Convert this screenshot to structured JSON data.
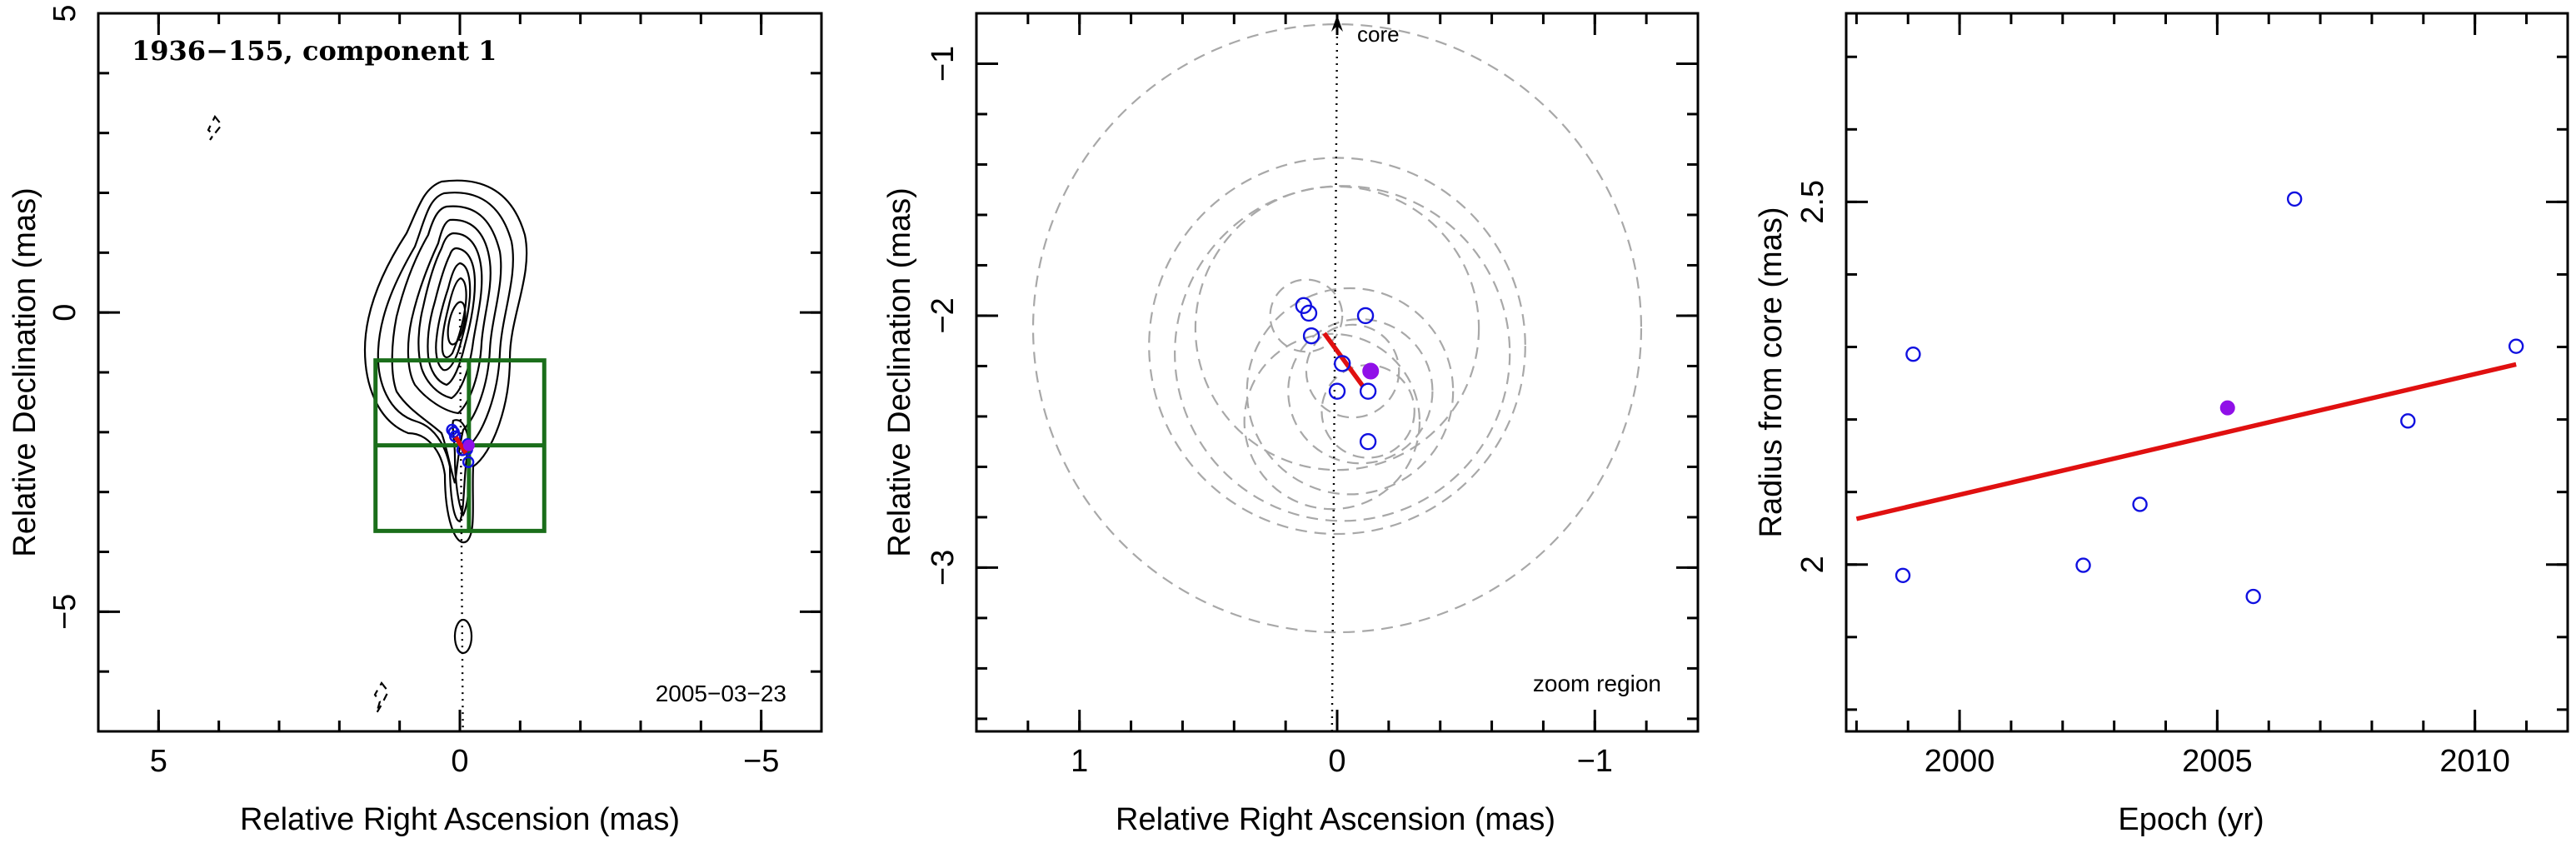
{
  "chart_data": [
    {
      "type": "scatter",
      "panel": "contour-map",
      "title": "1936−155, component 1",
      "annotation": "2005−03−23",
      "xlabel": "Relative Right Ascension (mas)",
      "ylabel": "Relative Declination (mas)",
      "xlim": [
        6,
        -6
      ],
      "ylim": [
        -7,
        5
      ],
      "xticks": [
        5,
        0,
        -5
      ],
      "xtick_labels": [
        "5",
        "0",
        "−5"
      ],
      "yticks": [
        5,
        0,
        -5
      ],
      "ytick_labels": [
        "5",
        "0",
        "−5"
      ],
      "component_positions": [
        {
          "x": 0.13,
          "y": -1.96
        },
        {
          "x": 0.1,
          "y": -2.0
        },
        {
          "x": 0.08,
          "y": -2.07
        },
        {
          "x": -0.04,
          "y": -2.3
        },
        {
          "x": -0.13,
          "y": -2.2
        },
        {
          "x": -0.14,
          "y": -2.5
        },
        {
          "x": -0.12,
          "y": -2.29
        }
      ],
      "current_epoch_position": {
        "x": -0.15,
        "y": -2.22
      },
      "trajectory_fit": {
        "x": [
          0.07,
          -0.1
        ],
        "y": [
          -2.08,
          -2.35
        ]
      },
      "zoom_box": {
        "x": [
          1.4,
          -1.4
        ],
        "y": [
          -0.8,
          -3.65
        ]
      },
      "crosshair": {
        "x": -0.15,
        "y": -2.22
      },
      "grid": false
    },
    {
      "type": "scatter",
      "panel": "zoom",
      "xlabel": "Relative Right Ascension (mas)",
      "ylabel": "Relative Declination (mas)",
      "annotation": "zoom region",
      "core_label": "core",
      "xlim": [
        1.4,
        -1.4
      ],
      "ylim": [
        -3.65,
        -0.8
      ],
      "xticks": [
        1,
        0,
        -1
      ],
      "xtick_labels": [
        "1",
        "0",
        "−1"
      ],
      "yticks": [
        -1,
        -2,
        -3
      ],
      "ytick_labels": [
        "−1",
        "−2",
        "−3"
      ],
      "component_positions": [
        {
          "x": 0.13,
          "y": -1.96
        },
        {
          "x": 0.11,
          "y": -1.99
        },
        {
          "x": 0.1,
          "y": -2.08
        },
        {
          "x": -0.11,
          "y": -2.0
        },
        {
          "x": -0.02,
          "y": -2.19
        },
        {
          "x": 0.0,
          "y": -2.3
        },
        {
          "x": -0.12,
          "y": -2.3
        },
        {
          "x": -0.12,
          "y": -2.5
        }
      ],
      "current_epoch_position": {
        "x": -0.13,
        "y": -2.22
      },
      "trajectory_fit": {
        "x": [
          0.05,
          -0.1
        ],
        "y": [
          -2.07,
          -2.28
        ]
      },
      "error_circles": [
        {
          "x": 0.0,
          "y": -2.05,
          "r": 1.18
        },
        {
          "x": 0.0,
          "y": -2.12,
          "r": 0.73
        },
        {
          "x": 0.0,
          "y": -2.05,
          "r": 0.55
        },
        {
          "x": -0.02,
          "y": -2.15,
          "r": 0.65
        },
        {
          "x": -0.09,
          "y": -2.3,
          "r": 0.28
        },
        {
          "x": -0.12,
          "y": -2.38,
          "r": 0.18
        },
        {
          "x": 0.12,
          "y": -2.0,
          "r": 0.14
        },
        {
          "x": 0.02,
          "y": -2.42,
          "r": 0.34
        },
        {
          "x": -0.06,
          "y": -2.22,
          "r": 0.18
        },
        {
          "x": -0.05,
          "y": -2.3,
          "r": 0.4
        }
      ],
      "core_arrow": {
        "x": [
          0.02,
          0.0
        ],
        "y": [
          -3.65,
          -0.8
        ]
      },
      "grid": false
    },
    {
      "type": "scatter",
      "panel": "radius-vs-epoch",
      "xlabel": "Epoch (yr)",
      "ylabel": "Radius from core (mas)",
      "xlim": [
        1997.8,
        2011.8
      ],
      "ylim": [
        1.77,
        2.76
      ],
      "xticks": [
        2000,
        2005,
        2010
      ],
      "xtick_labels": [
        "2000",
        "2005",
        "2010"
      ],
      "yticks": [
        2,
        2.5
      ],
      "ytick_labels": [
        "2",
        "2.5"
      ],
      "x": [
        1998.9,
        1999.1,
        2002.4,
        2003.5,
        2005.7,
        2006.5,
        2008.7,
        2010.8
      ],
      "y": [
        1.985,
        2.29,
        1.999,
        2.083,
        1.956,
        2.504,
        2.198,
        2.301
      ],
      "current_epoch": {
        "x": 2005.2,
        "y": 2.216
      },
      "trend_fit": {
        "x": [
          1998.0,
          2010.8
        ],
        "y": [
          2.063,
          2.276
        ]
      },
      "grid": false
    }
  ],
  "colors": {
    "points": "#1010e0",
    "current_epoch": "#9010e8",
    "fit_line": "#e01010",
    "zoom_box": "#1a6e1a",
    "error_circles": "#a8a8a8",
    "contours": "#000000"
  }
}
